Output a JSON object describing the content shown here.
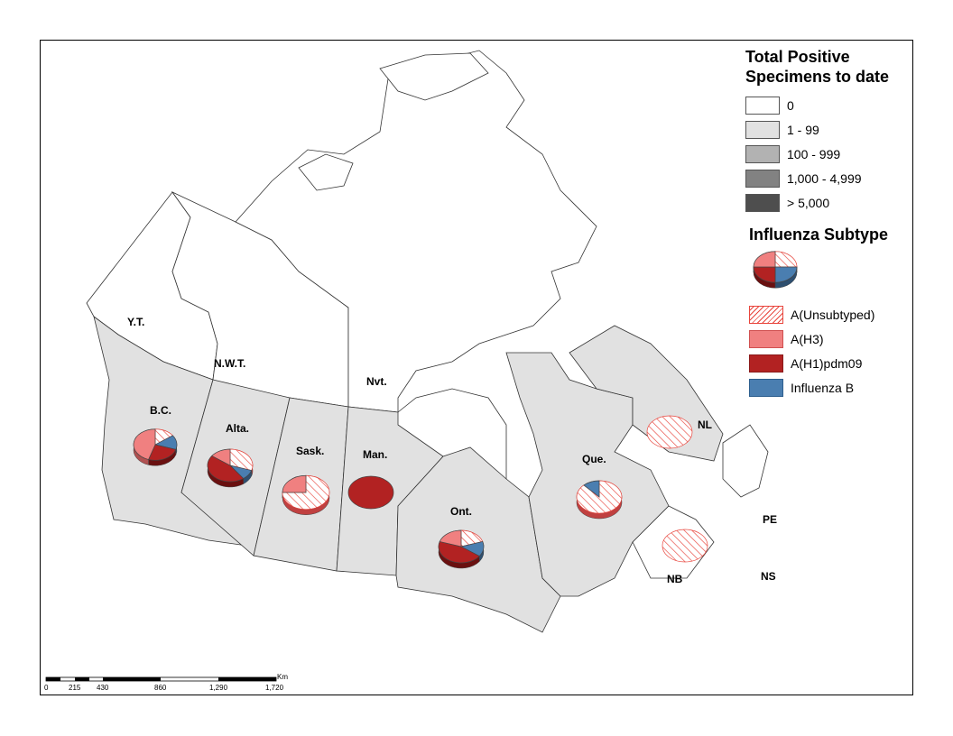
{
  "legend": {
    "total_title_line1": "Total Positive",
    "total_title_line2": "Specimens to date",
    "total_classes": [
      {
        "label": "0",
        "color": "#ffffff"
      },
      {
        "label": "1 - 99",
        "color": "#e1e1e1"
      },
      {
        "label": "100 - 999",
        "color": "#b2b2b2"
      },
      {
        "label": "1,000 - 4,999",
        "color": "#828282"
      },
      {
        "label": "> 5,000",
        "color": "#4e4e4e"
      }
    ],
    "subtype_title": "Influenza Subtype",
    "subtypes": [
      {
        "label": "A(Unsubtyped)",
        "color": "#e8453c",
        "pattern": "hatch"
      },
      {
        "label": "A(H3)",
        "color": "#f08080"
      },
      {
        "label": "A(H1)pdm09",
        "color": "#b22222"
      },
      {
        "label": "Influenza B",
        "color": "#4a7eb0"
      }
    ]
  },
  "provinces": {
    "yt": "Y.T.",
    "nwt": "N.W.T.",
    "nvt": "Nvt.",
    "bc": "B.C.",
    "alta": "Alta.",
    "sask": "Sask.",
    "man": "Man.",
    "ont": "Ont.",
    "que": "Que.",
    "nl": "NL",
    "pe": "PE",
    "nb": "NB",
    "ns": "NS"
  },
  "region_classes": {
    "yt": "0",
    "nwt": "0",
    "nvt": "0",
    "bc": "1 - 99",
    "alta": "1 - 99",
    "sask": "1 - 99",
    "man": "1 - 99",
    "ont": "1 - 99",
    "que": "1 - 99",
    "nl": "0",
    "maritimes": "0"
  },
  "pies": {
    "legend_sample": {
      "unsubtyped": 25,
      "h3": 25,
      "h1": 25,
      "b": 25
    },
    "bc": {
      "unsubtyped": 15,
      "h3": 45,
      "h1": 25,
      "b": 15
    },
    "alta": {
      "unsubtyped": 30,
      "h3": 15,
      "h1": 45,
      "b": 10
    },
    "sask": {
      "unsubtyped": 75,
      "h3": 25,
      "h1": 0,
      "b": 0
    },
    "man": {
      "unsubtyped": 0,
      "h3": 0,
      "h1": 100,
      "b": 0
    },
    "ont": {
      "unsubtyped": 20,
      "h3": 20,
      "h1": 45,
      "b": 15
    },
    "que": {
      "unsubtyped": 88,
      "h3": 0,
      "h1": 0,
      "b": 12
    },
    "nl": {
      "unsubtyped": 100,
      "h3": 0,
      "h1": 0,
      "b": 0
    },
    "nb": {
      "unsubtyped": 100,
      "h3": 0,
      "h1": 0,
      "b": 0
    }
  },
  "scalebar": {
    "unit": "Km",
    "ticks": [
      "0",
      "215",
      "430",
      "860",
      "1,290",
      "1,720"
    ]
  }
}
